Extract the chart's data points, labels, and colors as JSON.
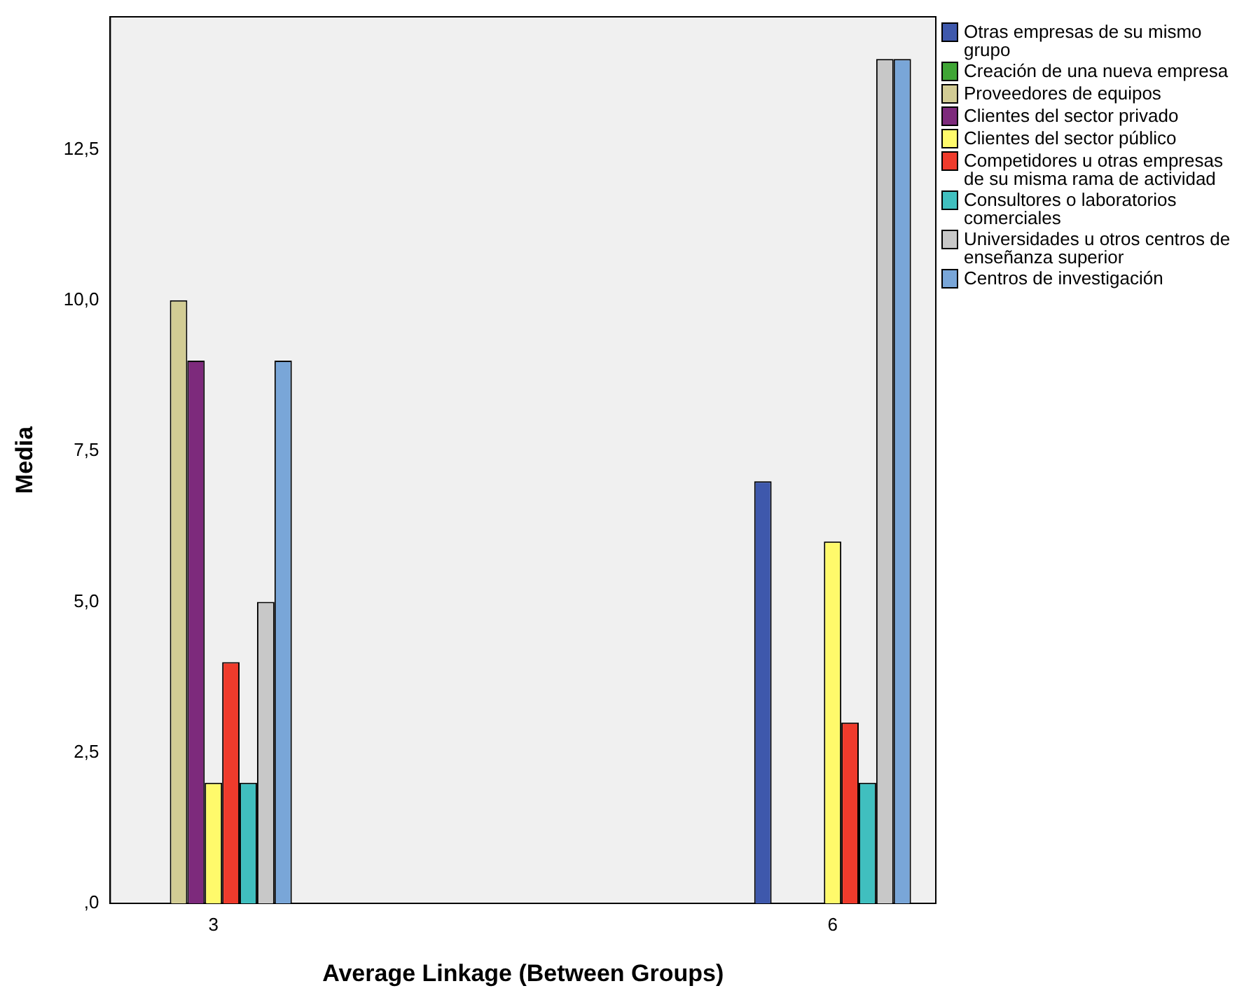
{
  "chart_data": {
    "type": "bar",
    "xlabel": "Average Linkage (Between Groups)",
    "ylabel": "Media",
    "categories": [
      "3",
      null,
      null,
      "6"
    ],
    "series": [
      {
        "name": "Otras empresas de su mismo grupo",
        "color": "#3e58ac",
        "values": [
          0,
          0,
          0,
          7
        ]
      },
      {
        "name": "Creación de una nueva empresa",
        "color": "#3fa535",
        "values": [
          0,
          0,
          0,
          0
        ]
      },
      {
        "name": "Proveedores de equipos",
        "color": "#d2cc94",
        "values": [
          10,
          0,
          0,
          0
        ]
      },
      {
        "name": "Clientes del sector privado",
        "color": "#7d2a7c",
        "values": [
          9,
          0,
          0,
          0
        ]
      },
      {
        "name": "Clientes del sector público",
        "color": "#fffa6b",
        "values": [
          2,
          0,
          0,
          6
        ]
      },
      {
        "name": "Competidores u otras empresas de su misma rama de actividad",
        "color": "#ef3b2c",
        "values": [
          4,
          0,
          0,
          3
        ]
      },
      {
        "name": "Consultores o laboratorios comerciales",
        "color": "#40bfbf",
        "values": [
          2,
          0,
          0,
          2
        ]
      },
      {
        "name": "Universidades u otros centros de enseñanza superior",
        "color": "#c8c8c8",
        "values": [
          5,
          0,
          0,
          14
        ]
      },
      {
        "name": "Centros de investigación",
        "color": "#79a6d8",
        "values": [
          9,
          0,
          0,
          14
        ]
      }
    ],
    "ylim": [
      0,
      14.7
    ],
    "yticks": [
      {
        "value": 0,
        "label": ",0"
      },
      {
        "value": 2.5,
        "label": "2,5"
      },
      {
        "value": 5,
        "label": "5,0"
      },
      {
        "value": 7.5,
        "label": "7,5"
      },
      {
        "value": 10,
        "label": "10,0"
      },
      {
        "value": 12.5,
        "label": "12,5"
      }
    ],
    "grid": false,
    "legend": "top right"
  }
}
